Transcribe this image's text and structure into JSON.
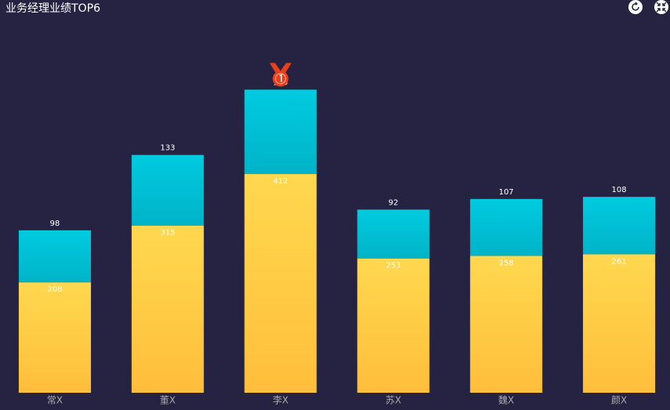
{
  "chart_data": {
    "type": "stacked-bar",
    "title": "业务经理业绩TOP6",
    "categories": [
      "常X",
      "董X",
      "李X",
      "苏X",
      "魏X",
      "颜X"
    ],
    "series": [
      {
        "color": "#ffcc44",
        "values": [
          208,
          315,
          412,
          253,
          258,
          261
        ]
      },
      {
        "color": "#00c2d6",
        "values": [
          98,
          133,
          159,
          92,
          107,
          108
        ]
      }
    ],
    "ylim": [
      0,
      700
    ]
  }
}
